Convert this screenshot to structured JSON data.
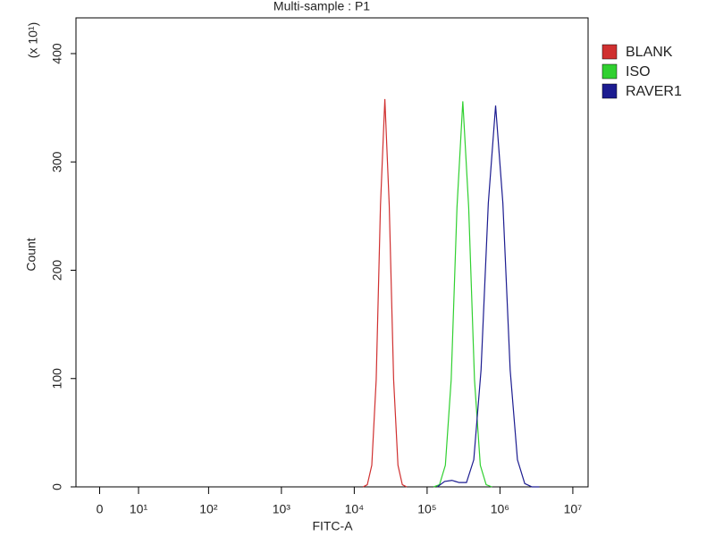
{
  "chart_data": {
    "type": "line",
    "title": "Multi-sample : P1",
    "y_multiplier": "(x 10¹)",
    "ylabel": "Count",
    "xlabel": "FITC-A",
    "xscale": "biexponential",
    "xlim": [
      -5.25,
      16200000
    ],
    "ylim": [
      0,
      433
    ],
    "yticks": [
      0,
      100,
      200,
      300,
      400
    ],
    "xticks": [
      0,
      {
        "value": 10,
        "label": "10¹"
      },
      {
        "value": 100,
        "label": "10²"
      },
      {
        "value": 1000,
        "label": "10³"
      },
      {
        "value": 10000,
        "label": "10⁴"
      },
      {
        "value": 100000,
        "label": "10⁵"
      },
      {
        "value": 1000000,
        "label": "10⁶"
      },
      {
        "value": 10000000,
        "label": "10⁷"
      }
    ],
    "legend": "top-right",
    "series": [
      {
        "name": "BLANK",
        "color": "#d03030",
        "x": [
          13200,
          15100,
          17400,
          20000,
          22900,
          26300,
          30200,
          34700,
          39800,
          45700,
          52500
        ],
        "values": [
          0,
          2,
          20,
          99,
          260,
          358,
          260,
          99,
          20,
          2,
          0
        ]
      },
      {
        "name": "ISO",
        "color": "#30d030",
        "x": [
          123000,
          148000,
          178000,
          214000,
          257000,
          309000,
          372000,
          447000,
          537000,
          646000,
          776000
        ],
        "values": [
          0,
          2,
          20,
          99,
          258,
          356,
          258,
          99,
          20,
          2,
          0
        ]
      },
      {
        "name": "RAVER1",
        "color": "#1c1c90",
        "x": [
          138000,
          174000,
          219000,
          275000,
          347000,
          437000,
          550000,
          692000,
          871000,
          1096000,
          1380000,
          1738000,
          2188000,
          2754000,
          3467000
        ],
        "values": [
          0,
          5,
          6,
          4,
          4,
          25,
          108,
          262,
          352,
          262,
          108,
          25,
          3,
          0,
          0
        ]
      }
    ]
  }
}
